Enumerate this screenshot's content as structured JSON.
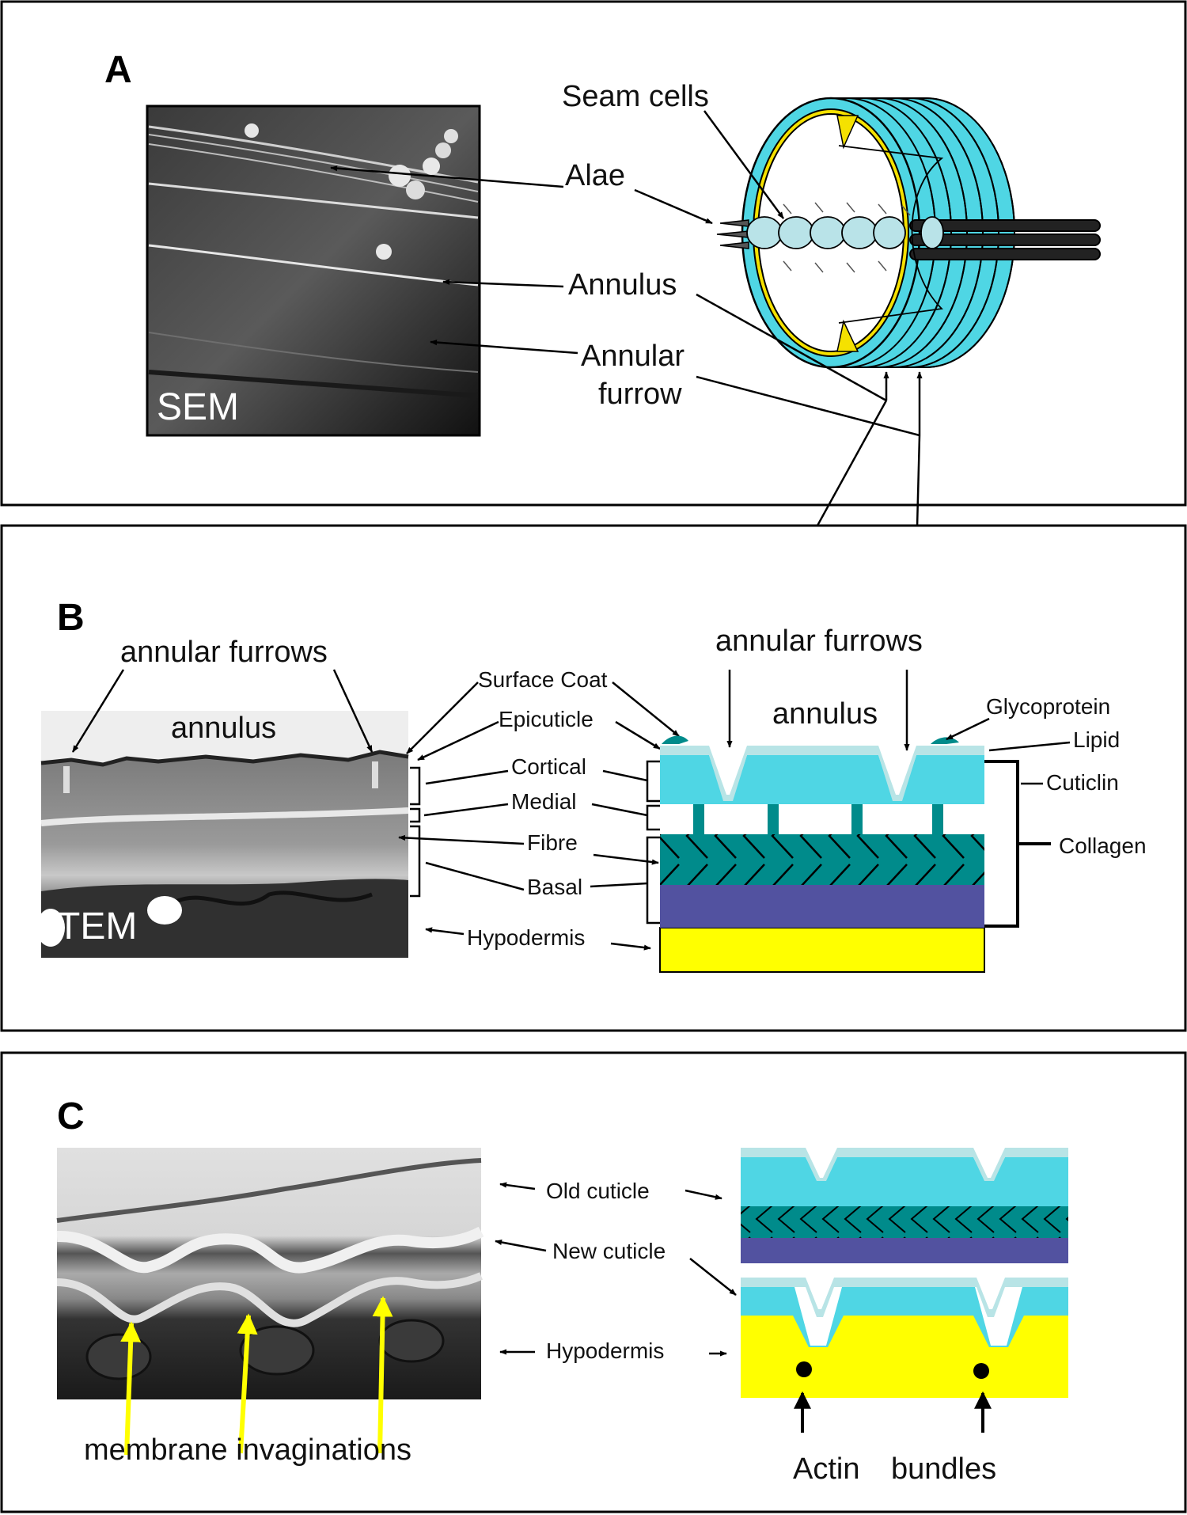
{
  "panels": {
    "a": {
      "letter": "A",
      "sem_label": "SEM",
      "labels": {
        "seam_cells": "Seam cells",
        "alae": "Alae",
        "annulus": "Annulus",
        "annular_1": "Annular",
        "annular_2": "furrow"
      }
    },
    "b": {
      "letter": "B",
      "tem_label": "TEM",
      "labels": {
        "annular_furrows_left": "annular furrows",
        "annulus_left": "annulus",
        "annular_furrows_right": "annular furrows",
        "annulus_right": "annulus",
        "surface_coat": "Surface Coat",
        "epicuticle": "Epicuticle",
        "cortical": "Cortical",
        "medial": "Medial",
        "fibre": "Fibre",
        "basal": "Basal",
        "hypodermis": "Hypodermis",
        "glycoprotein": "Glycoprotein",
        "lipid": "Lipid",
        "cuticlin": "Cuticlin",
        "collagen": "Collagen"
      }
    },
    "c": {
      "letter": "C",
      "labels": {
        "old_cuticle": "Old cuticle",
        "new_cuticle": "New cuticle",
        "hypodermis": "Hypodermis",
        "membrane_invaginations": "membrane invaginations",
        "actin": "Actin",
        "bundles": "bundles"
      }
    }
  },
  "colors": {
    "cuticle_cyan": "#4fd6e4",
    "cuticle_pale": "#b8e4e6",
    "teal": "#008b8b",
    "basal_purple": "#5252a0",
    "hypodermis_yellow": "#ffff00",
    "seam_yellow": "#f5e100",
    "seam_cell": "#b9e3e8",
    "arrow_yellow": "#ffff00"
  }
}
